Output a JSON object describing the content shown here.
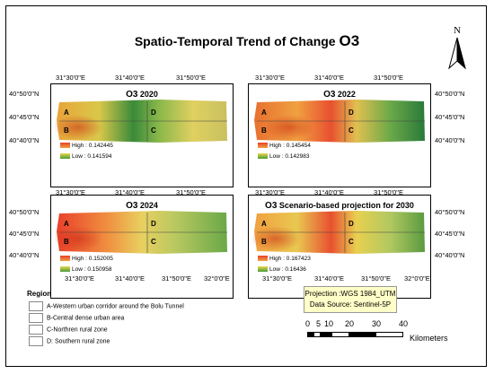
{
  "title": {
    "prefix": "Spatio-Temporal Trend of Change ",
    "o3": "O3"
  },
  "north": "N",
  "coords": {
    "lon": [
      "31°30'0\"E",
      "31°40'0\"E",
      "31°50'0\"E",
      "32°0'0\"E"
    ],
    "lat": [
      "40°50'0\"N",
      "40°45'0\"N",
      "40°40'0\"N"
    ]
  },
  "panels": [
    {
      "title_o3": "O3",
      "title_rest": " 2020",
      "high": "High : 0.142445",
      "low": "Low : 0.141594"
    },
    {
      "title_o3": "O3",
      "title_rest": " 2022",
      "high": "High : 0.145454",
      "low": "Low : 0.142983"
    },
    {
      "title_o3": "O3",
      "title_rest": " 2024",
      "high": "High : 0.152005",
      "low": "Low : 0.150958"
    },
    {
      "title_o3": "O3",
      "title_rest": " Scenario-based projection for 2030",
      "high": "High : 0.167423",
      "low": "Low : 0.16436"
    }
  ],
  "region_labels": [
    "A",
    "B",
    "C",
    "D"
  ],
  "region_legend": {
    "title": "Region",
    "items": [
      "A-Western urban corridor around the Bolu Tunnel",
      "B-Central dense urban area",
      "C-Northren rural  zone",
      "D: Southern rural zone"
    ]
  },
  "projection": {
    "line1": "Projection :WGS 1984_UTM",
    "line2": "Data Source: Sentinel-5P"
  },
  "scale": {
    "ticks": [
      "0",
      "5",
      "10",
      "20",
      "30",
      "40"
    ],
    "unit": "Kilometers"
  },
  "colors": {
    "high": "#e8402a",
    "mid": "#e8d84a",
    "low": "#4a9a3a"
  }
}
